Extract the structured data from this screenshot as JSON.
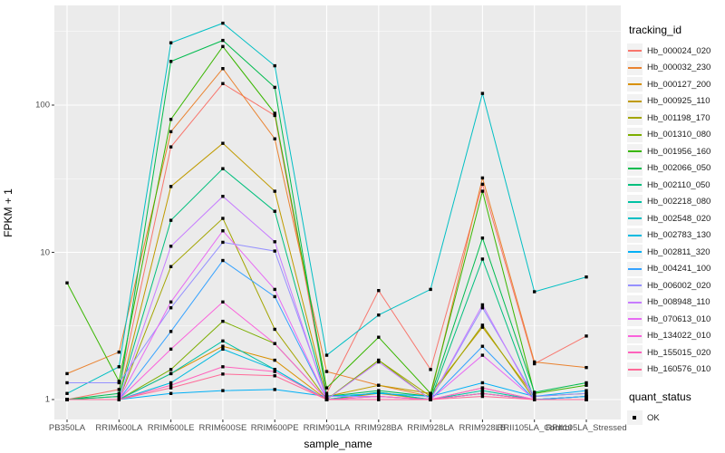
{
  "axes": {
    "x_title": "sample_name",
    "y_title": "FPKM + 1",
    "y_tick_labels": [
      "1",
      "10",
      "100"
    ]
  },
  "legend": {
    "tracking_title": "tracking_id",
    "quant_title": "quant_status",
    "quant_items": [
      {
        "label": "OK",
        "marker": "black-square"
      }
    ]
  },
  "colors": {
    "panel_background": "#EBEBEB",
    "gridline": "#FFFFFF",
    "axis_text": "#4D4D4D",
    "point": "#000000",
    "legend_key_background": "#F2F2F2"
  },
  "chart_data": {
    "type": "line",
    "title": "",
    "xlabel": "sample_name",
    "ylabel": "FPKM + 1",
    "y_scale": "log10",
    "y_ticks": [
      1,
      10,
      100
    ],
    "y_minor_gridlines": [
      3.1623,
      31.623,
      316.23
    ],
    "ylim": [
      0.78,
      480
    ],
    "grid": true,
    "legend_position": "right",
    "point_marker": "filled-black-square",
    "categories": [
      "PB350LA",
      "RRIM600LA",
      "RRIM600LE",
      "RRIM600SE",
      "RRIM600PE",
      "RRIM901LA",
      "RRIM928BA",
      "RRIM928LA",
      "RRIM928LB",
      "RRII105LA_Control",
      "RRII105LA_Stressed"
    ],
    "series": [
      {
        "name": "Hb_000024_020",
        "color": "#F8766D",
        "values": [
          1.0,
          1.17,
          52,
          140,
          85,
          1.1,
          5.5,
          1.6,
          29,
          1.75,
          2.7
        ]
      },
      {
        "name": "Hb_000032_230",
        "color": "#EA8331",
        "values": [
          1.5,
          2.1,
          66,
          177,
          59,
          1.55,
          1.25,
          1.05,
          32,
          1.8,
          1.65
        ]
      },
      {
        "name": "Hb_000127_200",
        "color": "#D89000",
        "values": [
          1.0,
          1.0,
          1.5,
          2.3,
          1.85,
          1.0,
          1.1,
          1.0,
          1.2,
          1.0,
          1.05
        ]
      },
      {
        "name": "Hb_000925_110",
        "color": "#C09B00",
        "values": [
          1.0,
          1.05,
          28,
          55,
          26,
          1.05,
          1.25,
          1.1,
          3.1,
          1.05,
          1.1
        ]
      },
      {
        "name": "Hb_001198_170",
        "color": "#A3A500",
        "values": [
          1.0,
          1.0,
          8.0,
          17,
          3.0,
          1.0,
          1.85,
          1.05,
          3.2,
          1.0,
          1.0
        ]
      },
      {
        "name": "Hb_001310_080",
        "color": "#7CAE00",
        "values": [
          1.0,
          1.0,
          1.6,
          3.4,
          2.4,
          1.0,
          1.85,
          1.0,
          1.1,
          1.0,
          1.0
        ]
      },
      {
        "name": "Hb_001956_160",
        "color": "#39B600",
        "values": [
          6.2,
          1.33,
          80,
          250,
          88,
          1.2,
          2.65,
          1.1,
          26,
          1.1,
          1.25
        ]
      },
      {
        "name": "Hb_002066_050",
        "color": "#00BB4E",
        "values": [
          1.0,
          1.1,
          198,
          275,
          132,
          1.05,
          1.15,
          1.05,
          12.5,
          1.12,
          1.3
        ]
      },
      {
        "name": "Hb_002110_050",
        "color": "#00BF7D",
        "values": [
          1.0,
          1.05,
          16.5,
          37,
          19,
          1.0,
          1.12,
          1.0,
          9.0,
          1.0,
          1.05
        ]
      },
      {
        "name": "Hb_002218_080",
        "color": "#00C1A3",
        "values": [
          1.0,
          1.0,
          1.5,
          2.5,
          1.6,
          1.0,
          1.12,
          1.0,
          1.15,
          1.0,
          1.0
        ]
      },
      {
        "name": "Hb_002548_020",
        "color": "#00BFC4",
        "values": [
          1.1,
          1.67,
          265,
          360,
          185,
          2.0,
          3.75,
          5.6,
          120,
          5.4,
          6.8
        ]
      },
      {
        "name": "Hb_002783_130",
        "color": "#00BAE0",
        "values": [
          1.0,
          1.0,
          1.3,
          2.2,
          1.6,
          1.0,
          1.05,
          1.0,
          1.1,
          1.0,
          1.05
        ]
      },
      {
        "name": "Hb_002811_320",
        "color": "#00B0F6",
        "values": [
          1.0,
          1.0,
          1.1,
          1.15,
          1.17,
          1.05,
          1.1,
          1.05,
          1.3,
          1.05,
          1.15
        ]
      },
      {
        "name": "Hb_004241_100",
        "color": "#35A2FF",
        "values": [
          1.0,
          1.0,
          2.9,
          8.8,
          5.0,
          1.0,
          1.0,
          1.0,
          2.3,
          1.0,
          1.05
        ]
      },
      {
        "name": "Hb_006002_020",
        "color": "#9590FF",
        "values": [
          1.3,
          1.3,
          4.2,
          11.7,
          10.2,
          1.05,
          1.05,
          1.0,
          4.2,
          1.05,
          1.1
        ]
      },
      {
        "name": "Hb_008948_110",
        "color": "#C77CFF",
        "values": [
          1.0,
          1.0,
          11,
          24,
          11.8,
          1.0,
          1.8,
          1.0,
          4.4,
          1.0,
          1.0
        ]
      },
      {
        "name": "Hb_070613_010",
        "color": "#E76BF3",
        "values": [
          1.0,
          1.0,
          4.6,
          14,
          5.6,
          1.0,
          1.05,
          1.0,
          2.0,
          1.0,
          1.0
        ]
      },
      {
        "name": "Hb_134022_010",
        "color": "#FA62DB",
        "values": [
          1.0,
          1.0,
          2.2,
          4.6,
          2.4,
          1.0,
          1.0,
          1.0,
          1.2,
          1.0,
          1.0
        ]
      },
      {
        "name": "Hb_155015_020",
        "color": "#FF62BC",
        "values": [
          1.0,
          1.0,
          1.25,
          1.67,
          1.55,
          1.0,
          1.05,
          1.0,
          1.1,
          1.0,
          1.0
        ]
      },
      {
        "name": "Hb_160576_010",
        "color": "#FF6A98",
        "values": [
          1.0,
          1.0,
          1.2,
          1.49,
          1.45,
          1.0,
          1.0,
          1.0,
          1.05,
          1.0,
          1.0
        ]
      }
    ]
  }
}
